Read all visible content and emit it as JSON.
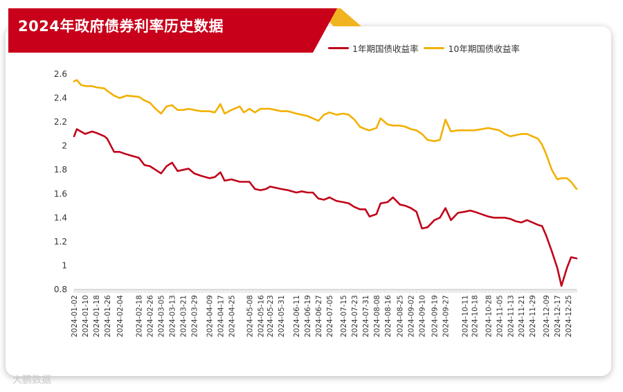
{
  "title": "2024年政府债券利率历史数据",
  "watermark": "大鹏数据",
  "colors": {
    "banner": "#c8001a",
    "banner_accent": "#f2b320",
    "series_1y": "#c00018",
    "series_10y": "#f2b000"
  },
  "chart_data": {
    "type": "line",
    "title": "2024年政府债券利率历史数据",
    "xlabel": "",
    "ylabel": "",
    "ylim": [
      0.8,
      2.6
    ],
    "yticks": [
      "2.6",
      "2.4",
      "2.2",
      "2",
      "1.8",
      "1.6",
      "1.4",
      "1.2",
      "1",
      "0.8"
    ],
    "grid": false,
    "legend_position": "top-right",
    "x_tick_labels": [
      "2024-01-02",
      "2024-01-10",
      "2024-01-18",
      "2024-01-26",
      "2024-02-04",
      "2024-02-18",
      "2024-02-26",
      "2024-03-05",
      "2024-03-13",
      "2024-03-21",
      "2024-03-29",
      "2024-04-09",
      "2024-04-17",
      "2024-04-25",
      "2024-05-08",
      "2024-05-16",
      "2024-05-23",
      "2024-05-31",
      "2024-06-11",
      "2024-06-19",
      "2024-06-27",
      "2024-07-05",
      "2024-07-15",
      "2024-07-23",
      "2024-07-31",
      "2024-08-08",
      "2024-08-16",
      "2024-08-25",
      "2024-09-02",
      "2024-09-10",
      "2024-09-19",
      "2024-09-27",
      "2024-10-11",
      "2024-10-18",
      "2024-10-28",
      "2024-11-05",
      "2024-11-13",
      "2024-11-21",
      "2024-11-29",
      "2024-12-09",
      "2024-12-17",
      "2024-12-25"
    ],
    "series": [
      {
        "name": "1年期国债收益率",
        "points": [
          [
            "2024-01-02",
            2.08
          ],
          [
            "2024-01-04",
            2.14
          ],
          [
            "2024-01-10",
            2.1
          ],
          [
            "2024-01-15",
            2.12
          ],
          [
            "2024-01-18",
            2.11
          ],
          [
            "2024-01-24",
            2.08
          ],
          [
            "2024-01-26",
            2.06
          ],
          [
            "2024-01-31",
            1.95
          ],
          [
            "2024-02-04",
            1.95
          ],
          [
            "2024-02-09",
            1.93
          ],
          [
            "2024-02-18",
            1.9
          ],
          [
            "2024-02-22",
            1.84
          ],
          [
            "2024-02-26",
            1.83
          ],
          [
            "2024-03-01",
            1.8
          ],
          [
            "2024-03-05",
            1.77
          ],
          [
            "2024-03-09",
            1.83
          ],
          [
            "2024-03-13",
            1.86
          ],
          [
            "2024-03-17",
            1.79
          ],
          [
            "2024-03-21",
            1.8
          ],
          [
            "2024-03-25",
            1.81
          ],
          [
            "2024-03-29",
            1.77
          ],
          [
            "2024-04-03",
            1.75
          ],
          [
            "2024-04-09",
            1.73
          ],
          [
            "2024-04-13",
            1.74
          ],
          [
            "2024-04-17",
            1.78
          ],
          [
            "2024-04-20",
            1.71
          ],
          [
            "2024-04-25",
            1.72
          ],
          [
            "2024-05-01",
            1.7
          ],
          [
            "2024-05-08",
            1.7
          ],
          [
            "2024-05-12",
            1.64
          ],
          [
            "2024-05-16",
            1.63
          ],
          [
            "2024-05-20",
            1.64
          ],
          [
            "2024-05-23",
            1.66
          ],
          [
            "2024-05-27",
            1.65
          ],
          [
            "2024-05-31",
            1.64
          ],
          [
            "2024-06-05",
            1.63
          ],
          [
            "2024-06-11",
            1.61
          ],
          [
            "2024-06-15",
            1.62
          ],
          [
            "2024-06-19",
            1.61
          ],
          [
            "2024-06-23",
            1.61
          ],
          [
            "2024-06-27",
            1.56
          ],
          [
            "2024-07-01",
            1.55
          ],
          [
            "2024-07-05",
            1.57
          ],
          [
            "2024-07-10",
            1.54
          ],
          [
            "2024-07-15",
            1.53
          ],
          [
            "2024-07-19",
            1.52
          ],
          [
            "2024-07-23",
            1.49
          ],
          [
            "2024-07-27",
            1.47
          ],
          [
            "2024-07-31",
            1.47
          ],
          [
            "2024-08-03",
            1.41
          ],
          [
            "2024-08-08",
            1.43
          ],
          [
            "2024-08-11",
            1.52
          ],
          [
            "2024-08-16",
            1.53
          ],
          [
            "2024-08-20",
            1.57
          ],
          [
            "2024-08-25",
            1.51
          ],
          [
            "2024-08-29",
            1.5
          ],
          [
            "2024-09-02",
            1.48
          ],
          [
            "2024-09-06",
            1.45
          ],
          [
            "2024-09-10",
            1.31
          ],
          [
            "2024-09-14",
            1.32
          ],
          [
            "2024-09-19",
            1.38
          ],
          [
            "2024-09-23",
            1.4
          ],
          [
            "2024-09-27",
            1.48
          ],
          [
            "2024-10-01",
            1.38
          ],
          [
            "2024-10-06",
            1.44
          ],
          [
            "2024-10-11",
            1.45
          ],
          [
            "2024-10-15",
            1.46
          ],
          [
            "2024-10-18",
            1.45
          ],
          [
            "2024-10-23",
            1.43
          ],
          [
            "2024-10-28",
            1.41
          ],
          [
            "2024-11-01",
            1.4
          ],
          [
            "2024-11-05",
            1.4
          ],
          [
            "2024-11-09",
            1.4
          ],
          [
            "2024-11-13",
            1.39
          ],
          [
            "2024-11-17",
            1.37
          ],
          [
            "2024-11-21",
            1.36
          ],
          [
            "2024-11-25",
            1.38
          ],
          [
            "2024-11-29",
            1.36
          ],
          [
            "2024-12-03",
            1.34
          ],
          [
            "2024-12-06",
            1.33
          ],
          [
            "2024-12-09",
            1.25
          ],
          [
            "2024-12-13",
            1.12
          ],
          [
            "2024-12-17",
            0.98
          ],
          [
            "2024-12-20",
            0.83
          ],
          [
            "2024-12-24",
            0.98
          ],
          [
            "2024-12-27",
            1.07
          ],
          [
            "2024-12-31",
            1.06
          ]
        ]
      },
      {
        "name": "10年期国债收益率",
        "points": [
          [
            "2024-01-02",
            2.54
          ],
          [
            "2024-01-04",
            2.55
          ],
          [
            "2024-01-07",
            2.51
          ],
          [
            "2024-01-10",
            2.5
          ],
          [
            "2024-01-15",
            2.5
          ],
          [
            "2024-01-18",
            2.49
          ],
          [
            "2024-01-24",
            2.48
          ],
          [
            "2024-01-26",
            2.46
          ],
          [
            "2024-01-31",
            2.42
          ],
          [
            "2024-02-04",
            2.4
          ],
          [
            "2024-02-09",
            2.42
          ],
          [
            "2024-02-18",
            2.41
          ],
          [
            "2024-02-22",
            2.38
          ],
          [
            "2024-02-26",
            2.36
          ],
          [
            "2024-03-01",
            2.31
          ],
          [
            "2024-03-05",
            2.27
          ],
          [
            "2024-03-09",
            2.33
          ],
          [
            "2024-03-13",
            2.34
          ],
          [
            "2024-03-17",
            2.3
          ],
          [
            "2024-03-21",
            2.3
          ],
          [
            "2024-03-25",
            2.31
          ],
          [
            "2024-03-29",
            2.3
          ],
          [
            "2024-04-03",
            2.29
          ],
          [
            "2024-04-09",
            2.29
          ],
          [
            "2024-04-13",
            2.28
          ],
          [
            "2024-04-17",
            2.35
          ],
          [
            "2024-04-20",
            2.27
          ],
          [
            "2024-04-25",
            2.3
          ],
          [
            "2024-05-01",
            2.33
          ],
          [
            "2024-05-04",
            2.28
          ],
          [
            "2024-05-08",
            2.31
          ],
          [
            "2024-05-12",
            2.28
          ],
          [
            "2024-05-16",
            2.31
          ],
          [
            "2024-05-20",
            2.31
          ],
          [
            "2024-05-23",
            2.31
          ],
          [
            "2024-05-27",
            2.3
          ],
          [
            "2024-05-31",
            2.29
          ],
          [
            "2024-06-05",
            2.29
          ],
          [
            "2024-06-11",
            2.27
          ],
          [
            "2024-06-15",
            2.26
          ],
          [
            "2024-06-19",
            2.25
          ],
          [
            "2024-06-23",
            2.23
          ],
          [
            "2024-06-27",
            2.21
          ],
          [
            "2024-07-01",
            2.26
          ],
          [
            "2024-07-05",
            2.28
          ],
          [
            "2024-07-10",
            2.26
          ],
          [
            "2024-07-15",
            2.27
          ],
          [
            "2024-07-19",
            2.26
          ],
          [
            "2024-07-23",
            2.22
          ],
          [
            "2024-07-27",
            2.16
          ],
          [
            "2024-07-31",
            2.14
          ],
          [
            "2024-08-03",
            2.13
          ],
          [
            "2024-08-08",
            2.15
          ],
          [
            "2024-08-11",
            2.23
          ],
          [
            "2024-08-16",
            2.18
          ],
          [
            "2024-08-20",
            2.17
          ],
          [
            "2024-08-25",
            2.17
          ],
          [
            "2024-08-29",
            2.16
          ],
          [
            "2024-09-02",
            2.14
          ],
          [
            "2024-09-06",
            2.13
          ],
          [
            "2024-09-10",
            2.1
          ],
          [
            "2024-09-14",
            2.05
          ],
          [
            "2024-09-19",
            2.04
          ],
          [
            "2024-09-23",
            2.05
          ],
          [
            "2024-09-27",
            2.22
          ],
          [
            "2024-10-01",
            2.12
          ],
          [
            "2024-10-06",
            2.13
          ],
          [
            "2024-10-11",
            2.13
          ],
          [
            "2024-10-15",
            2.13
          ],
          [
            "2024-10-18",
            2.13
          ],
          [
            "2024-10-23",
            2.14
          ],
          [
            "2024-10-28",
            2.15
          ],
          [
            "2024-11-01",
            2.14
          ],
          [
            "2024-11-05",
            2.13
          ],
          [
            "2024-11-09",
            2.1
          ],
          [
            "2024-11-13",
            2.08
          ],
          [
            "2024-11-17",
            2.09
          ],
          [
            "2024-11-21",
            2.1
          ],
          [
            "2024-11-25",
            2.1
          ],
          [
            "2024-11-29",
            2.08
          ],
          [
            "2024-12-03",
            2.06
          ],
          [
            "2024-12-06",
            2.01
          ],
          [
            "2024-12-09",
            1.93
          ],
          [
            "2024-12-13",
            1.8
          ],
          [
            "2024-12-17",
            1.72
          ],
          [
            "2024-12-20",
            1.73
          ],
          [
            "2024-12-24",
            1.73
          ],
          [
            "2024-12-27",
            1.7
          ],
          [
            "2024-12-31",
            1.64
          ]
        ]
      }
    ]
  }
}
